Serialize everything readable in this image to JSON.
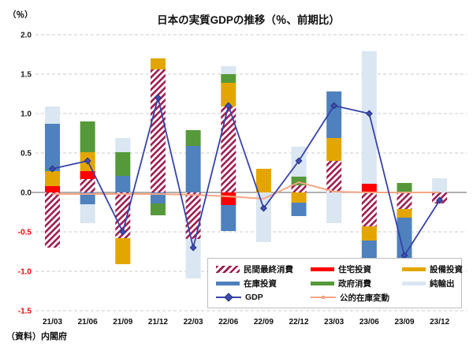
{
  "title": "日本の実質GDPの推移（％、前期比）",
  "y_axis_unit": "（％）",
  "source_note": "（資料）内閣府",
  "colors": {
    "hatch_stripe": "#9E1B50",
    "housing_red": "#FE0000",
    "capex_gold": "#E3A600",
    "inventory_blue": "#4E81BD",
    "government_green": "#56993A",
    "net_exports_pale": "#DAE6F2",
    "gdp_line": "#3743A8",
    "gdp_marker_fill": "#3E4DB0",
    "gdp_marker_edge": "#27307E",
    "public_inventory_line": "#F5A583",
    "grid": "#CBCBCB",
    "zero_axis": "#808080",
    "positive_tick": "#1A1A1A",
    "negative_tick": "#FF0000"
  },
  "chart_data": {
    "type": "bar",
    "subtype": "stacked-bars-with-line-overlay",
    "title": "日本の実質GDPの推移（％、前期比）",
    "xlabel": "",
    "ylabel": "（％）",
    "ylim": [
      -1.5,
      2.0
    ],
    "yticks": [
      2.0,
      1.5,
      1.0,
      0.5,
      0.0,
      -0.5,
      -1.0,
      -1.5
    ],
    "grid": true,
    "legend_position": "inside-bottom-right",
    "categories": [
      "21/03",
      "21/06",
      "21/09",
      "21/12",
      "22/03",
      "22/06",
      "22/09",
      "22/12",
      "23/03",
      "23/06",
      "23/09",
      "23/12"
    ],
    "series": [
      {
        "name": "民間最終消費",
        "style": "hatch",
        "color": "#9E1B50",
        "values": [
          -0.7,
          0.17,
          -0.58,
          1.56,
          -0.59,
          1.09,
          0,
          0.09,
          0.4,
          -0.43,
          -0.21,
          -0.14
        ]
      },
      {
        "name": "住宅投資",
        "style": "solid",
        "color": "#FE0000",
        "values": [
          0.08,
          0.1,
          0,
          0,
          0,
          -0.16,
          0,
          0,
          0,
          0.11,
          0,
          0
        ]
      },
      {
        "name": "設備投資",
        "style": "solid",
        "color": "#E3A600",
        "values": [
          0.19,
          0.24,
          -0.33,
          0.14,
          0,
          0.3,
          0.3,
          -0.13,
          0.29,
          -0.18,
          -0.11,
          0
        ]
      },
      {
        "name": "在庫投資",
        "style": "solid",
        "color": "#4E81BD",
        "values": [
          0.6,
          -0.15,
          0.21,
          -0.14,
          0.59,
          -0.33,
          0,
          -0.17,
          0.59,
          -0.22,
          -0.51,
          0
        ]
      },
      {
        "name": "政府消費",
        "style": "solid",
        "color": "#56993A",
        "values": [
          0,
          0.39,
          0.3,
          -0.15,
          0.2,
          0.11,
          0,
          0.11,
          0,
          0,
          0.12,
          0
        ]
      },
      {
        "name": "純輸出",
        "style": "solid",
        "color": "#DAE6F2",
        "values": [
          0.22,
          -0.24,
          0.18,
          0,
          -0.5,
          0.1,
          -0.63,
          0.38,
          -0.39,
          1.68,
          0,
          0.18
        ]
      }
    ],
    "line_series": [
      {
        "name": "GDP",
        "color": "#3743A8",
        "marker": "diamond",
        "values": [
          0.3,
          0.4,
          -0.5,
          1.2,
          -0.7,
          1.1,
          -0.2,
          0.4,
          1.1,
          1.0,
          -0.8,
          -0.1
        ]
      },
      {
        "name": "公的在庫変動",
        "color": "#F5A583",
        "marker": "none",
        "values": [
          -0.02,
          -0.02,
          -0.02,
          -0.02,
          -0.03,
          -0.05,
          -0.08,
          0.13,
          0.01,
          0.0,
          0.0,
          0.0
        ]
      }
    ]
  },
  "legend": {
    "items": [
      {
        "label": "民間最終消費",
        "swatch": "hatch",
        "color": "#9E1B50"
      },
      {
        "label": "住宅投資",
        "swatch": "solid",
        "color": "#FE0000"
      },
      {
        "label": "設備投資",
        "swatch": "solid",
        "color": "#E3A600"
      },
      {
        "label": "在庫投資",
        "swatch": "solid",
        "color": "#4E81BD"
      },
      {
        "label": "政府消費",
        "swatch": "solid",
        "color": "#56993A"
      },
      {
        "label": "純輸出",
        "swatch": "solid",
        "color": "#DAE6F2"
      },
      {
        "label": "GDP",
        "swatch": "line-diamond",
        "color": "#3743A8"
      },
      {
        "label": "公的在庫変動",
        "swatch": "line-dot",
        "color": "#F5A583"
      }
    ]
  }
}
